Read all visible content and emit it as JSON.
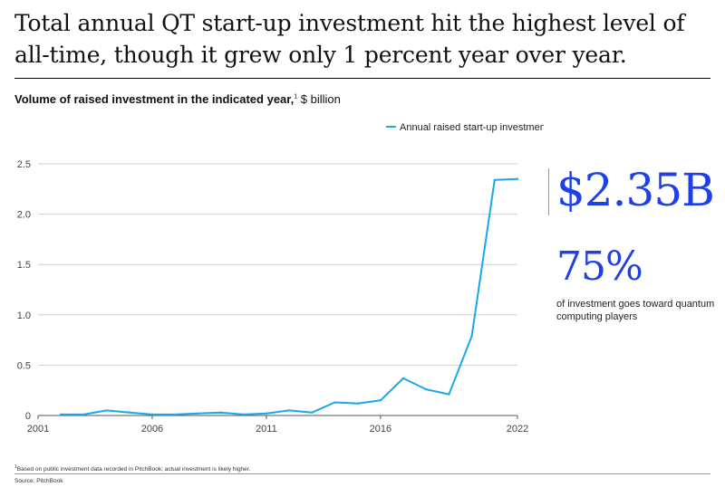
{
  "headline": "Total annual QT start-up investment hit the highest level of all-time, though it grew only 1 percent year over year.",
  "subtitle": {
    "bold": "Volume of raised investment in the indicated year,",
    "sup": "1",
    "unit": " $ billion"
  },
  "callouts": {
    "total": "$2.35B",
    "share": "75%",
    "share_note": "of investment goes toward quantum computing players"
  },
  "footnote": {
    "sup": "1",
    "text": "Based on public investment data recorded in PitchBook; actual investment is likely higher."
  },
  "source": "Source: PitchBook",
  "colors": {
    "line": "#1aa9e8",
    "accent": "#1f40e6"
  },
  "chart_data": {
    "type": "line",
    "x": [
      2002,
      2003,
      2004,
      2005,
      2006,
      2007,
      2008,
      2009,
      2010,
      2011,
      2012,
      2013,
      2014,
      2015,
      2016,
      2017,
      2018,
      2019,
      2020,
      2021,
      2022
    ],
    "series": [
      {
        "name": "Annual raised start-up investment",
        "values": [
          0.01,
          0.01,
          0.05,
          0.03,
          0.01,
          0.01,
          0.02,
          0.03,
          0.01,
          0.02,
          0.05,
          0.03,
          0.13,
          0.12,
          0.15,
          0.37,
          0.26,
          0.21,
          0.79,
          2.34,
          2.35
        ]
      }
    ],
    "xticks": [
      "2001",
      "2006",
      "2011",
      "2016",
      "2022"
    ],
    "yticks": [
      "0",
      "0.5",
      "1.0",
      "1.5",
      "2.0",
      "2.5"
    ],
    "xlim": [
      2001,
      2022
    ],
    "ylim": [
      0,
      2.5
    ],
    "grid": "horizontal",
    "legend": "top-right"
  }
}
